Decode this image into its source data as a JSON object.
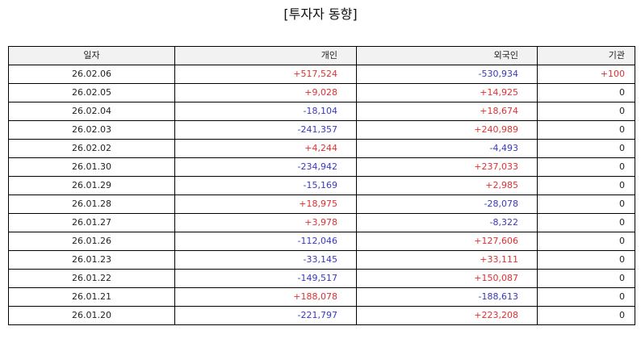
{
  "title": "[투자자 동향]",
  "colors": {
    "positive": "#e03030",
    "negative": "#3838c0",
    "neutral": "#222222",
    "header_bg": "#f2f2f2"
  },
  "table": {
    "headers": [
      "일자",
      "개인",
      "외국인",
      "기관"
    ],
    "rows": [
      [
        "26.02.06",
        "+517,524",
        "-530,934",
        "+100"
      ],
      [
        "26.02.05",
        "+9,028",
        "+14,925",
        "0"
      ],
      [
        "26.02.04",
        "-18,104",
        "+18,674",
        "0"
      ],
      [
        "26.02.03",
        "-241,357",
        "+240,989",
        "0"
      ],
      [
        "26.02.02",
        "+4,244",
        "-4,493",
        "0"
      ],
      [
        "26.01.30",
        "-234,942",
        "+237,033",
        "0"
      ],
      [
        "26.01.29",
        "-15,169",
        "+2,985",
        "0"
      ],
      [
        "26.01.28",
        "+18,975",
        "-28,078",
        "0"
      ],
      [
        "26.01.27",
        "+3,978",
        "-8,322",
        "0"
      ],
      [
        "26.01.26",
        "-112,046",
        "+127,606",
        "0"
      ],
      [
        "26.01.23",
        "-33,145",
        "+33,111",
        "0"
      ],
      [
        "26.01.22",
        "-149,517",
        "+150,087",
        "0"
      ],
      [
        "26.01.21",
        "+188,078",
        "-188,613",
        "0"
      ],
      [
        "26.01.20",
        "-221,797",
        "+223,208",
        "0"
      ]
    ]
  }
}
